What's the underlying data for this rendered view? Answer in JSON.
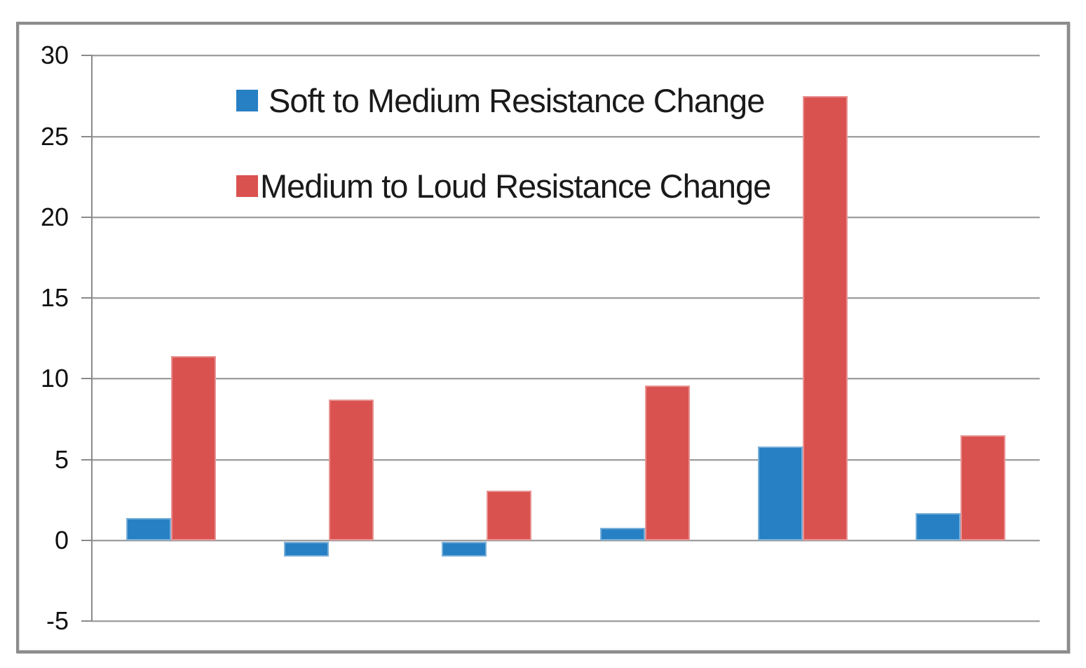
{
  "chart_data": {
    "type": "bar",
    "title": "",
    "xlabel": "",
    "ylabel": "",
    "categories": [
      "",
      "",
      "",
      "",
      "",
      ""
    ],
    "x_axis_labels_visible": false,
    "series": [
      {
        "name": "Soft to Medium Resistance Change",
        "color": "#2780C3",
        "values": [
          1.4,
          -1.0,
          -1.0,
          0.8,
          5.8,
          1.7
        ]
      },
      {
        "name": "Medium to Loud Resistance Change",
        "color": "#DA5250",
        "values": [
          11.4,
          8.7,
          3.1,
          9.6,
          27.5,
          6.5
        ]
      }
    ],
    "ylim": [
      -5,
      30
    ],
    "yticks": [
      30,
      25,
      20,
      15,
      10,
      5,
      0,
      -5
    ],
    "grid": true,
    "legend_position": "top-left-inside"
  },
  "colors": {
    "background": "#ffffff",
    "gridline": "#9f9f9f",
    "axis_line": "#8a8a8a",
    "frame_border": "#8c8c8c",
    "tick_label_text": "#111111",
    "legend_text": "#1a1a1a"
  }
}
